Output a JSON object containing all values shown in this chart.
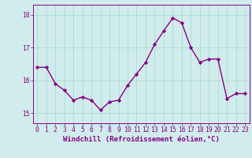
{
  "x": [
    0,
    1,
    2,
    3,
    4,
    5,
    6,
    7,
    8,
    9,
    10,
    11,
    12,
    13,
    14,
    15,
    16,
    17,
    18,
    19,
    20,
    21,
    22,
    23
  ],
  "y": [
    16.4,
    16.4,
    15.9,
    15.7,
    15.4,
    15.5,
    15.4,
    15.1,
    15.35,
    15.4,
    15.85,
    16.2,
    16.55,
    17.1,
    17.5,
    17.9,
    17.75,
    17.0,
    16.55,
    16.65,
    16.65,
    15.45,
    15.6,
    15.6
  ],
  "line_color": "#880088",
  "marker": "D",
  "marker_size": 2.2,
  "xlabel": "Windchill (Refroidissement éolien,°C)",
  "xlabel_fontsize": 6.5,
  "ylim": [
    14.7,
    18.3
  ],
  "xlim": [
    -0.5,
    23.5
  ],
  "yticks": [
    15,
    16,
    17,
    18
  ],
  "xticks": [
    0,
    1,
    2,
    3,
    4,
    5,
    6,
    7,
    8,
    9,
    10,
    11,
    12,
    13,
    14,
    15,
    16,
    17,
    18,
    19,
    20,
    21,
    22,
    23
  ],
  "grid_color": "#aaddcc",
  "bg_color": "#d0ecec",
  "tick_fontsize": 5.8,
  "linewidth": 1.0
}
